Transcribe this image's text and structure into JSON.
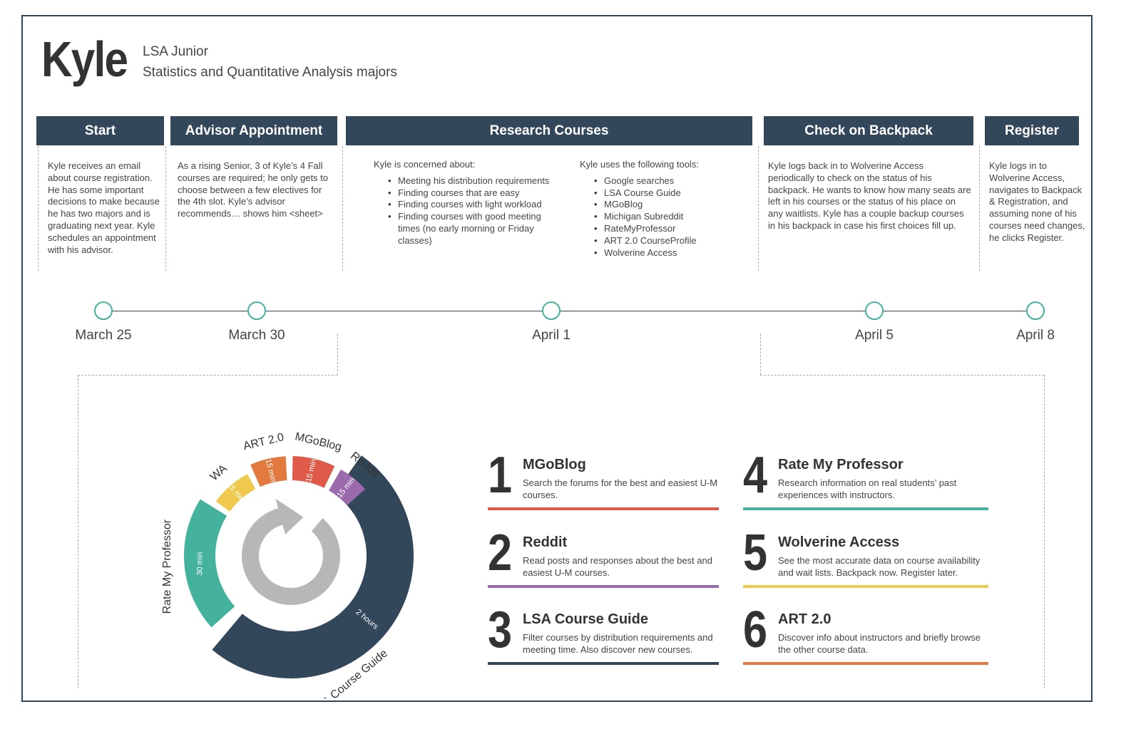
{
  "persona": {
    "name": "Kyle",
    "year": "LSA Junior",
    "majors": "Statistics and Quantitative Analysis majors"
  },
  "stages": [
    {
      "title": "Start",
      "text": "Kyle receives an email about course registration. He has some important decisions to make because he has two majors and is graduating next year. Kyle schedules an appointment with his advisor."
    },
    {
      "title": "Advisor Appointment",
      "text": "As a rising Senior, 3 of Kyle’s 4 Fall courses are required; he only gets to choose between a few electives for the 4th slot. Kyle’s advisor recommends… shows him <sheet>"
    },
    {
      "title": "Research Courses",
      "concerns_title": "Kyle is concerned about:",
      "concerns": [
        "Meeting his distribution requirements",
        "Finding courses that are easy",
        "Finding courses with light workload",
        "Finding courses with good meeting times (no early morning or Friday classes)"
      ],
      "tools_title": "Kyle uses the following tools:",
      "tools": [
        "Google searches",
        "LSA Course Guide",
        "MGoBlog",
        "Michigan Subreddit",
        "RateMyProfessor",
        "ART 2.0 CourseProfile",
        "Wolverine Access"
      ]
    },
    {
      "title": "Check on Backpack",
      "text": "Kyle logs back in to Wolverine Access periodically to check on the status of his backpack. He wants to know how many seats are left in his courses or the status of his place on any waitlists. Kyle has a couple backup courses in his backpack in case his first choices fill up."
    },
    {
      "title": "Register",
      "text": "Kyle logs in to Wolverine Access, navigates to Backpack & Registration, and assuming none of his courses need changes, he clicks Register."
    }
  ],
  "timeline": [
    "March 25",
    "March 30",
    "April 1",
    "April 5",
    "April 8"
  ],
  "ring": {
    "segments": [
      {
        "name": "LSA Course Guide",
        "duration": "2 hours",
        "color": "#33475b"
      },
      {
        "name": "Rate My Professor",
        "duration": "30 min",
        "color": "#45b29d"
      },
      {
        "name": "WA",
        "duration": "15 min",
        "color": "#efc94c"
      },
      {
        "name": "ART 2.0",
        "duration": "15 min",
        "color": "#e27a3f"
      },
      {
        "name": "MGoBlog",
        "duration": "15 min",
        "color": "#df5a49"
      },
      {
        "name": "Reddit",
        "duration": "15 min",
        "color": "#9b6aad"
      }
    ],
    "cycle_color": "#b7b7b7"
  },
  "resources": [
    {
      "num": "1",
      "title": "MGoBlog",
      "desc": "Search the forums for the best and easiest U-M courses.",
      "color": "#df5a49"
    },
    {
      "num": "2",
      "title": "Reddit",
      "desc": "Read posts and responses about the best and easiest U-M courses.",
      "color": "#9b6aad"
    },
    {
      "num": "3",
      "title": "LSA Course Guide",
      "desc": "Filter courses by distribution requirements and meeting time.  Also discover new courses.",
      "color": "#33475b"
    },
    {
      "num": "4",
      "title": "Rate My Professor",
      "desc": "Research information on real students’ past experiences with  instructors.",
      "color": "#45b29d"
    },
    {
      "num": "5",
      "title": "Wolverine Access",
      "desc": "See the most accurate data on course availability and wait lists. Backpack now. Register later.",
      "color": "#efc94c"
    },
    {
      "num": "6",
      "title": "ART 2.0",
      "desc": "Discover info about instructors and briefly browse the other course data.",
      "color": "#e27a3f"
    }
  ]
}
